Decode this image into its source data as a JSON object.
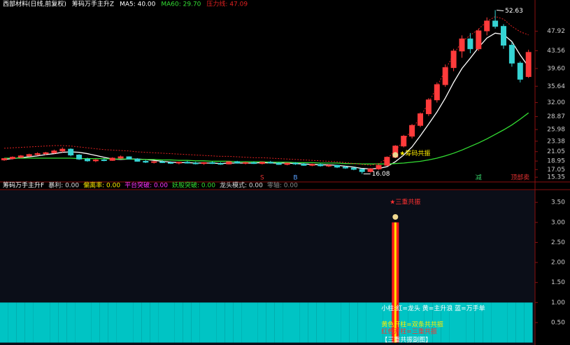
{
  "chart_data": [
    {
      "type": "candlestick",
      "title": "西部材料(日线,前复权)",
      "indicator": "筹码万手主升Z",
      "up_color": "#ff3b3b",
      "down_color": "#35d3d3",
      "candles": [
        [
          19.2,
          19.6,
          19.0,
          19.5
        ],
        [
          19.5,
          20.0,
          19.3,
          19.8
        ],
        [
          19.8,
          20.3,
          19.6,
          20.1
        ],
        [
          20.1,
          20.6,
          19.9,
          20.4
        ],
        [
          20.4,
          20.9,
          20.2,
          20.6
        ],
        [
          20.6,
          21.0,
          20.3,
          20.8
        ],
        [
          20.8,
          21.5,
          20.6,
          21.2
        ],
        [
          21.2,
          22.0,
          20.9,
          21.6
        ],
        [
          21.6,
          21.8,
          20.0,
          20.3
        ],
        [
          20.3,
          20.5,
          19.2,
          19.4
        ],
        [
          19.4,
          19.7,
          18.8,
          19.0
        ],
        [
          19.0,
          19.4,
          18.7,
          19.2
        ],
        [
          19.2,
          19.6,
          18.9,
          19.1
        ],
        [
          19.1,
          19.8,
          19.0,
          19.6
        ],
        [
          19.6,
          20.2,
          19.4,
          19.9
        ],
        [
          19.9,
          20.0,
          19.3,
          19.4
        ],
        [
          19.4,
          19.6,
          18.8,
          18.9
        ],
        [
          18.9,
          19.2,
          18.5,
          18.7
        ],
        [
          18.7,
          19.0,
          18.4,
          18.8
        ],
        [
          18.8,
          19.1,
          18.5,
          18.6
        ],
        [
          18.6,
          18.9,
          18.3,
          18.5
        ],
        [
          18.5,
          18.8,
          18.2,
          18.7
        ],
        [
          18.7,
          19.0,
          18.4,
          18.5
        ],
        [
          18.5,
          18.8,
          18.2,
          18.4
        ],
        [
          18.4,
          18.7,
          18.1,
          18.6
        ],
        [
          18.6,
          18.9,
          18.3,
          18.4
        ],
        [
          18.4,
          18.7,
          18.1,
          18.3
        ],
        [
          18.3,
          18.9,
          18.2,
          18.8
        ],
        [
          18.8,
          19.0,
          18.4,
          18.5
        ],
        [
          18.5,
          18.8,
          18.2,
          18.6
        ],
        [
          18.6,
          18.9,
          18.3,
          18.4
        ],
        [
          18.4,
          18.8,
          18.2,
          18.7
        ],
        [
          18.7,
          19.0,
          18.4,
          18.5
        ],
        [
          18.5,
          18.7,
          18.1,
          18.2
        ],
        [
          18.2,
          18.6,
          18.0,
          18.5
        ],
        [
          18.5,
          18.7,
          18.1,
          18.3
        ],
        [
          18.3,
          18.5,
          17.9,
          18.0
        ],
        [
          18.0,
          18.4,
          17.8,
          18.2
        ],
        [
          18.2,
          18.4,
          17.7,
          17.9
        ],
        [
          17.9,
          18.2,
          17.6,
          18.0
        ],
        [
          18.0,
          18.1,
          17.4,
          17.6
        ],
        [
          17.6,
          17.9,
          17.2,
          17.4
        ],
        [
          17.4,
          17.6,
          16.9,
          17.1
        ],
        [
          17.1,
          17.3,
          16.08,
          16.6
        ],
        [
          16.6,
          17.4,
          16.4,
          17.2
        ],
        [
          17.2,
          18.2,
          17.0,
          18.0
        ],
        [
          18.0,
          20.0,
          17.9,
          19.8
        ],
        [
          19.8,
          22.5,
          19.6,
          22.3
        ],
        [
          22.3,
          24.8,
          22.0,
          24.5
        ],
        [
          24.5,
          27.2,
          24.0,
          26.9
        ],
        [
          26.9,
          29.8,
          26.5,
          29.5
        ],
        [
          29.5,
          33.0,
          29.0,
          32.6
        ],
        [
          32.6,
          36.5,
          32.0,
          36.0
        ],
        [
          36.0,
          40.5,
          35.5,
          39.8
        ],
        [
          39.8,
          44.0,
          39.0,
          43.5
        ],
        [
          43.5,
          47.0,
          42.0,
          46.2
        ],
        [
          46.2,
          47.5,
          43.0,
          44.0
        ],
        [
          44.0,
          48.5,
          43.5,
          48.0
        ],
        [
          48.0,
          51.0,
          47.0,
          50.2
        ],
        [
          50.2,
          52.63,
          48.5,
          49.0
        ],
        [
          49.0,
          49.5,
          44.0,
          44.8
        ],
        [
          44.8,
          45.5,
          40.0,
          40.8
        ],
        [
          40.8,
          41.2,
          36.5,
          37.2
        ],
        [
          37.8,
          43.8,
          37.5,
          43.2
        ]
      ],
      "series": [
        {
          "name": "MA5: 40.00",
          "color": "#ffffff",
          "style": "solid",
          "values": [
            19.3,
            19.5,
            19.7,
            19.9,
            20.1,
            20.4,
            20.6,
            20.9,
            21.0,
            20.9,
            20.6,
            20.2,
            19.8,
            19.4,
            19.3,
            19.4,
            19.4,
            19.3,
            19.1,
            18.9,
            18.7,
            18.6,
            18.6,
            18.5,
            18.5,
            18.5,
            18.4,
            18.5,
            18.5,
            18.5,
            18.5,
            18.6,
            18.5,
            18.5,
            18.5,
            18.4,
            18.3,
            18.2,
            18.1,
            18.1,
            18.0,
            17.8,
            17.6,
            17.3,
            17.2,
            17.3,
            17.7,
            18.8,
            20.3,
            22.1,
            24.6,
            27.2,
            29.9,
            33.0,
            36.5,
            39.6,
            41.9,
            44.3,
            46.4,
            47.5,
            47.2,
            45.6,
            42.6,
            40.0
          ]
        },
        {
          "name": "MA60: 29.70",
          "color": "#33dd33",
          "style": "solid",
          "values": [
            19.6,
            19.6,
            19.6,
            19.6,
            19.6,
            19.6,
            19.6,
            19.6,
            19.6,
            19.5,
            19.5,
            19.5,
            19.5,
            19.4,
            19.4,
            19.4,
            19.3,
            19.3,
            19.3,
            19.2,
            19.2,
            19.1,
            19.1,
            19.0,
            19.0,
            18.9,
            18.9,
            18.9,
            18.8,
            18.8,
            18.8,
            18.8,
            18.7,
            18.7,
            18.7,
            18.6,
            18.6,
            18.6,
            18.5,
            18.5,
            18.5,
            18.4,
            18.4,
            18.3,
            18.3,
            18.3,
            18.3,
            18.4,
            18.5,
            18.7,
            18.9,
            19.2,
            19.6,
            20.1,
            20.7,
            21.4,
            22.2,
            23.0,
            23.9,
            24.9,
            25.9,
            27.0,
            28.3,
            29.7
          ]
        },
        {
          "name": "压力线: 47.09",
          "color": "#e02020",
          "style": "dotted",
          "values": [
            21.8,
            21.9,
            22.0,
            22.1,
            22.2,
            22.3,
            22.4,
            22.4,
            22.3,
            22.1,
            21.9,
            21.7,
            21.5,
            21.4,
            21.3,
            21.2,
            21.0,
            20.9,
            20.8,
            20.7,
            20.6,
            20.5,
            20.4,
            20.3,
            20.2,
            20.1,
            20.0,
            20.0,
            19.9,
            19.8,
            19.7,
            19.7,
            19.6,
            19.5,
            19.4,
            19.3,
            19.2,
            19.1,
            19.0,
            18.9,
            18.8,
            18.6,
            18.4,
            18.2,
            18.0,
            18.4,
            19.5,
            21.3,
            23.5,
            26.0,
            28.8,
            32.0,
            35.5,
            39.3,
            42.8,
            45.6,
            47.0,
            48.4,
            50.1,
            51.2,
            50.6,
            49.0,
            47.8,
            47.09
          ]
        }
      ],
      "high_label": "52.63",
      "low_label": "16.08",
      "signal_label": "★筹码共振",
      "signal_color": "#ffee00",
      "markers": [
        {
          "index": 31,
          "text": "S",
          "color": "#e03030"
        },
        {
          "index": 35,
          "text": "B",
          "color": "#5aa0ff"
        },
        {
          "index": 57,
          "text": "减",
          "color": "#33cc66"
        },
        {
          "index": 62,
          "text": "顶部卖",
          "color": "#e03030"
        }
      ],
      "ylim": [
        14.6,
        52.7
      ],
      "yticks": [
        47.92,
        43.56,
        {
          "value": 39.6,
          "label": "39.60"
        },
        35.64,
        {
          "value": 32,
          "label": "32.00"
        },
        28.87,
        25.98,
        23.38,
        21.05,
        18.95,
        17.05,
        15.35
      ]
    },
    {
      "type": "bar",
      "title": "筹码万手主升F",
      "header_items": [
        {
          "text": "暴利: 0.00",
          "color": "#dddddd"
        },
        {
          "text": "偏离率: 0.00",
          "color": "#ffee00"
        },
        {
          "text": "平台突破: 0.00",
          "color": "#ff33ff"
        },
        {
          "text": "妖股突破: 0.00",
          "color": "#33dd33"
        },
        {
          "text": "龙头模式: 0.00",
          "color": "#dddddd"
        },
        {
          "text": "零轴: 0.00",
          "color": "#888888"
        }
      ],
      "series": [
        {
          "color": "#00c4c4",
          "values": [
            1,
            1,
            1,
            1,
            1,
            1,
            1,
            1,
            1,
            1,
            1,
            1,
            1,
            1,
            1,
            1,
            1,
            1,
            1,
            1,
            1,
            1,
            1,
            1,
            1,
            1,
            1,
            1,
            1,
            1,
            1,
            1,
            1,
            1,
            1,
            1,
            1,
            1,
            1,
            1,
            1,
            1,
            1,
            1,
            1,
            1,
            1,
            1,
            1,
            1,
            1,
            1,
            1,
            1,
            1,
            1,
            1,
            1,
            1,
            1,
            1,
            1,
            1,
            1
          ]
        },
        {
          "color": "#ff1a1a",
          "inner_color": "#ffe000",
          "values": [
            null,
            null,
            null,
            null,
            null,
            null,
            null,
            null,
            null,
            null,
            null,
            null,
            null,
            null,
            null,
            null,
            null,
            null,
            null,
            null,
            null,
            null,
            null,
            null,
            null,
            null,
            null,
            null,
            null,
            null,
            null,
            null,
            null,
            null,
            null,
            null,
            null,
            null,
            null,
            null,
            null,
            null,
            null,
            null,
            null,
            null,
            null,
            3,
            null,
            null,
            null,
            null,
            null,
            null,
            null,
            null,
            null,
            null,
            null,
            null,
            null,
            null,
            null,
            null
          ]
        }
      ],
      "signal_label": "★三重共振",
      "notes": [
        {
          "text": "小柱:红=龙头 黄=主升浪 蓝=万手单",
          "color": "#ffffff"
        },
        {
          "text": "黄色开柱=双条共共振",
          "color": "#ffee00"
        },
        {
          "text": "红色开柱=三重共振",
          "color": "#ff3030"
        },
        {
          "text": "【三重共振副图】",
          "color": "#ffffff"
        }
      ],
      "ylim": [
        -0.06,
        3.8
      ],
      "yticks": [
        {
          "value": 3.5,
          "label": "3.50"
        },
        {
          "value": 3,
          "label": "3.00"
        },
        {
          "value": 2.5,
          "label": "2.50"
        },
        {
          "value": 2,
          "label": "2.00"
        },
        {
          "value": 1.5,
          "label": "1.50"
        },
        {
          "value": 1,
          "label": "1.00"
        },
        {
          "value": 0.5,
          "label": "0.50"
        }
      ]
    }
  ]
}
